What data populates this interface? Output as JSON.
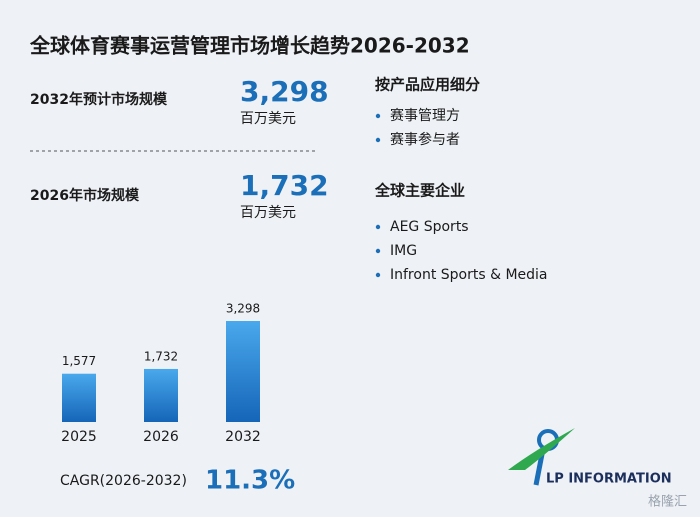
{
  "title": "全球体育赛事运营管理市场增长趋势2026-2032",
  "stats": [
    {
      "label": "2032年预计市场规模",
      "value": "3,298",
      "unit": "百万美元"
    },
    {
      "label": "2026年市场规模",
      "value": "1,732",
      "unit": "百万美元"
    }
  ],
  "segments": {
    "heading": "按产品应用细分",
    "items": [
      "赛事管理方",
      "赛事参与者"
    ]
  },
  "companies": {
    "heading": "全球主要企业",
    "items": [
      "AEG Sports",
      "IMG",
      "Infront Sports & Media"
    ]
  },
  "cagr": {
    "label": "CAGR(2026-2032)",
    "value": "11.3%"
  },
  "logo": "LP INFORMATION",
  "watermark": "格隆汇",
  "chart_data": {
    "type": "bar",
    "categories": [
      "2025",
      "2026",
      "2032"
    ],
    "values": [
      1577,
      1732,
      3298
    ],
    "value_labels": [
      "1,577",
      "1,732",
      "3,298"
    ],
    "color": "#1f7fd0"
  }
}
